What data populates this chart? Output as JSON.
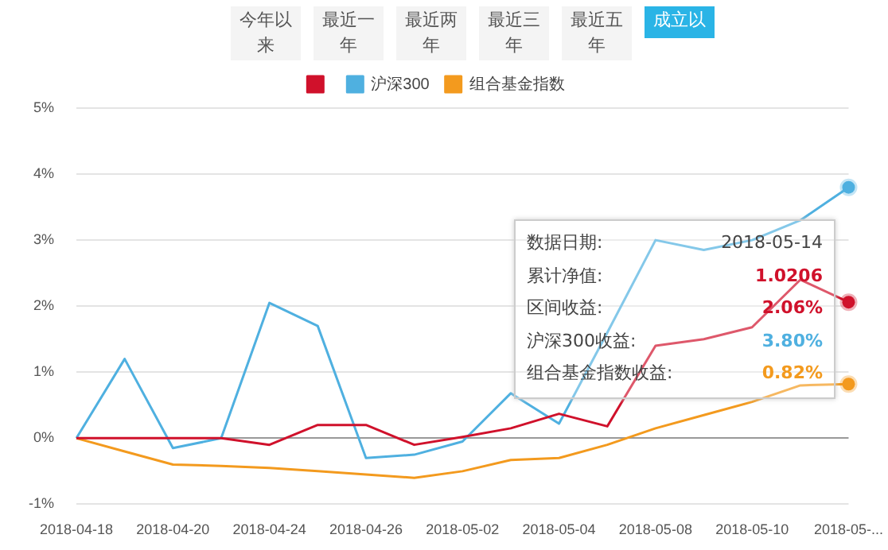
{
  "chart_data": {
    "type": "line",
    "categories": [
      "2018-04-18",
      null,
      "2018-04-20",
      null,
      "2018-04-24",
      null,
      "2018-04-26",
      null,
      "2018-05-02",
      null,
      "2018-05-04",
      null,
      "2018-05-08",
      null,
      "2018-05-10",
      null,
      "2018-05-..."
    ],
    "series": [
      {
        "color": "#d0112b",
        "values": [
          0,
          0,
          0,
          0,
          -0.1,
          0.2,
          0.2,
          -0.1,
          0.02,
          0.15,
          0.37,
          0.18,
          1.4,
          1.5,
          1.68,
          2.4,
          2.06
        ]
      },
      {
        "name": "沪深300",
        "color": "#4fb0e0",
        "values": [
          0,
          1.2,
          -0.15,
          0,
          2.05,
          1.7,
          -0.3,
          -0.25,
          -0.05,
          0.68,
          0.22,
          1.6,
          3.0,
          2.85,
          3.0,
          3.3,
          3.8
        ]
      },
      {
        "name": "组合基金指数",
        "color": "#f39a1e",
        "values": [
          0,
          -0.2,
          -0.4,
          -0.42,
          -0.45,
          -0.5,
          -0.55,
          -0.6,
          -0.5,
          -0.33,
          -0.3,
          -0.1,
          0.15,
          0.35,
          0.55,
          0.8,
          0.82
        ]
      }
    ],
    "ylim": [
      -1,
      5
    ],
    "yticks": [
      {
        "value": -1,
        "label": "-1%"
      },
      {
        "value": 0,
        "label": "0%"
      },
      {
        "value": 1,
        "label": "1%"
      },
      {
        "value": 2,
        "label": "2%"
      },
      {
        "value": 3,
        "label": "3%"
      },
      {
        "value": 4,
        "label": "4%"
      },
      {
        "value": 5,
        "label": "5%"
      }
    ],
    "grid": "y",
    "legend": "top",
    "marker": "none",
    "line_style": "solid",
    "annotations": [
      "今年以来",
      "最近一年",
      "最近两年",
      "最近三年",
      "最近五年",
      "成立以",
      "数据日期:",
      "2018-05-14",
      "累计净值:",
      "1.0206",
      "区间收益:",
      "2.06%",
      "沪深300收益:",
      "3.80%",
      "组合基金指数收益:",
      "0.82%"
    ]
  }
}
